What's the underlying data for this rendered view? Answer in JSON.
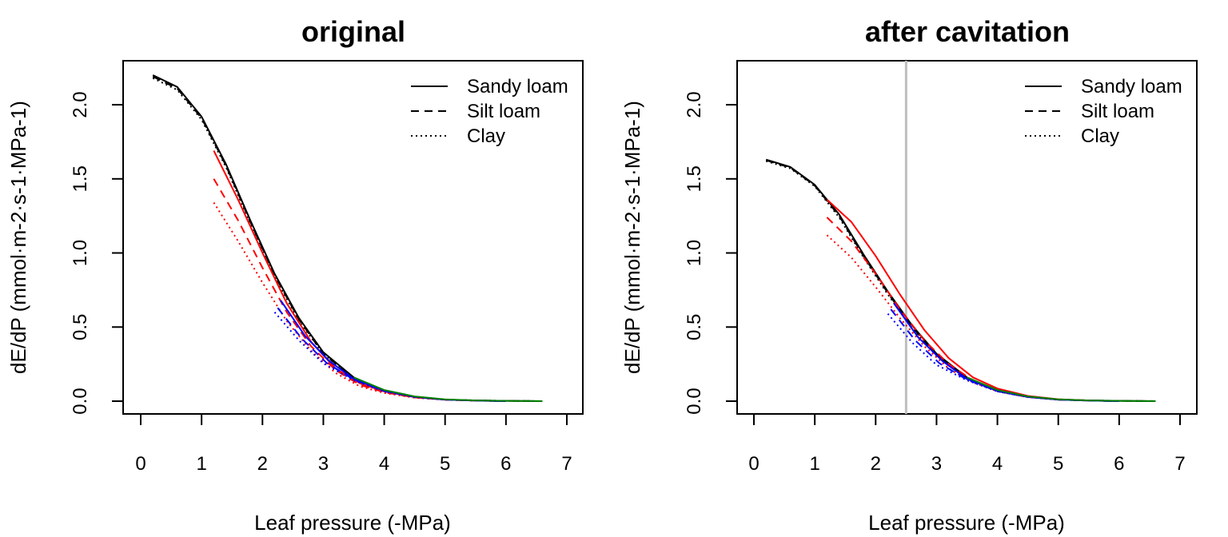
{
  "chart_data": [
    {
      "type": "line",
      "title": "original",
      "xlabel": "Leaf pressure (-MPa)",
      "ylabel": "dE/dP  (mmol·m-2·s-1·MPa-1)",
      "xlim": [
        0,
        7
      ],
      "ylim": [
        0,
        2.2
      ],
      "xticks": [
        "0",
        "1",
        "2",
        "3",
        "4",
        "5",
        "6",
        "7"
      ],
      "yticks": [
        "0.0",
        "0.5",
        "1.0",
        "1.5",
        "2.0"
      ],
      "legend_position": "top-right",
      "legend": [
        {
          "label": "Sandy loam",
          "dash": "solid"
        },
        {
          "label": "Silt loam",
          "dash": "dashed"
        },
        {
          "label": "Clay",
          "dash": "dotted"
        }
      ],
      "series": [
        {
          "color": "#000000",
          "dash": "solid",
          "x": [
            0.2,
            0.6,
            1.0,
            1.4,
            1.8,
            2.2,
            2.6,
            3.0,
            3.5,
            4.0,
            4.5,
            5.0,
            5.5,
            6.0,
            6.6
          ],
          "y": [
            2.2,
            2.12,
            1.92,
            1.6,
            1.22,
            0.86,
            0.56,
            0.33,
            0.16,
            0.07,
            0.03,
            0.01,
            0.005,
            0.002,
            0.0
          ]
        },
        {
          "color": "#000000",
          "dash": "dashed",
          "x": [
            0.2,
            0.6,
            1.0,
            1.4,
            1.8,
            2.2,
            2.6,
            3.0,
            3.5,
            4.0,
            4.5,
            5.0,
            5.5,
            6.0,
            6.6
          ],
          "y": [
            2.19,
            2.11,
            1.91,
            1.59,
            1.21,
            0.85,
            0.55,
            0.32,
            0.155,
            0.068,
            0.028,
            0.01,
            0.005,
            0.002,
            0.0
          ]
        },
        {
          "color": "#000000",
          "dash": "dotted",
          "x": [
            0.2,
            0.6,
            1.0,
            1.4,
            1.8,
            2.2,
            2.6,
            3.0,
            3.5,
            4.0,
            4.5,
            5.0,
            5.5,
            6.0,
            6.6
          ],
          "y": [
            2.18,
            2.1,
            1.9,
            1.58,
            1.2,
            0.84,
            0.54,
            0.32,
            0.15,
            0.066,
            0.027,
            0.01,
            0.005,
            0.002,
            0.0
          ]
        },
        {
          "color": "#ff0000",
          "dash": "solid",
          "x": [
            1.2,
            1.6,
            2.0,
            2.4,
            2.8,
            3.2,
            3.6,
            4.0,
            4.5,
            5.0,
            5.5,
            6.0
          ],
          "y": [
            1.69,
            1.36,
            1.0,
            0.66,
            0.4,
            0.22,
            0.12,
            0.065,
            0.027,
            0.01,
            0.004,
            0.0
          ]
        },
        {
          "color": "#ff0000",
          "dash": "dashed",
          "x": [
            1.2,
            1.6,
            2.0,
            2.4,
            2.8,
            3.2,
            3.6,
            4.0,
            4.5,
            5.0,
            5.5,
            6.0
          ],
          "y": [
            1.5,
            1.22,
            0.9,
            0.6,
            0.37,
            0.21,
            0.11,
            0.06,
            0.025,
            0.01,
            0.004,
            0.0
          ]
        },
        {
          "color": "#ff0000",
          "dash": "dotted",
          "x": [
            1.2,
            1.6,
            2.0,
            2.4,
            2.8,
            3.2,
            3.6,
            4.0,
            4.5,
            5.0,
            5.5,
            6.0
          ],
          "y": [
            1.34,
            1.08,
            0.8,
            0.54,
            0.34,
            0.19,
            0.1,
            0.055,
            0.023,
            0.009,
            0.003,
            0.0
          ]
        },
        {
          "color": "#0000ff",
          "dash": "solid",
          "x": [
            2.3,
            2.7,
            3.1,
            3.5,
            4.0,
            4.5,
            5.0,
            5.5,
            6.0
          ],
          "y": [
            0.68,
            0.44,
            0.27,
            0.15,
            0.07,
            0.03,
            0.01,
            0.004,
            0.0
          ]
        },
        {
          "color": "#0000ff",
          "dash": "dashed",
          "x": [
            2.25,
            2.65,
            3.05,
            3.5,
            4.0,
            4.5,
            5.0,
            5.5,
            6.0
          ],
          "y": [
            0.63,
            0.42,
            0.26,
            0.145,
            0.068,
            0.028,
            0.01,
            0.004,
            0.0
          ]
        },
        {
          "color": "#0000ff",
          "dash": "dotted",
          "x": [
            2.2,
            2.6,
            3.0,
            3.5,
            4.0,
            4.5,
            5.0,
            5.5,
            6.0
          ],
          "y": [
            0.6,
            0.41,
            0.255,
            0.14,
            0.065,
            0.027,
            0.01,
            0.004,
            0.0
          ]
        },
        {
          "color": "#008000",
          "dash": "solid",
          "x": [
            3.5,
            4.0,
            4.5,
            5.0,
            5.5,
            6.0,
            6.6
          ],
          "y": [
            0.16,
            0.075,
            0.032,
            0.012,
            0.005,
            0.002,
            0.0
          ]
        }
      ]
    },
    {
      "type": "line",
      "title": "after cavitation",
      "xlabel": "Leaf pressure (-MPa)",
      "ylabel": "dE/dP  (mmol·m-2·s-1·MPa-1)",
      "xlim": [
        0,
        7
      ],
      "ylim": [
        0,
        2.2
      ],
      "xticks": [
        "0",
        "1",
        "2",
        "3",
        "4",
        "5",
        "6",
        "7"
      ],
      "yticks": [
        "0.0",
        "0.5",
        "1.0",
        "1.5",
        "2.0"
      ],
      "vline": {
        "x": 2.5,
        "color": "#bebebe"
      },
      "legend_position": "top-right",
      "legend": [
        {
          "label": "Sandy loam",
          "dash": "solid"
        },
        {
          "label": "Silt loam",
          "dash": "dashed"
        },
        {
          "label": "Clay",
          "dash": "dotted"
        }
      ],
      "series": [
        {
          "color": "#000000",
          "dash": "solid",
          "x": [
            0.2,
            0.6,
            1.0,
            1.4,
            1.8,
            2.2,
            2.6,
            3.0,
            3.5,
            4.0,
            4.5,
            5.0,
            5.5,
            6.0,
            6.6
          ],
          "y": [
            1.63,
            1.58,
            1.46,
            1.26,
            0.99,
            0.74,
            0.51,
            0.32,
            0.16,
            0.07,
            0.03,
            0.01,
            0.005,
            0.002,
            0.0
          ]
        },
        {
          "color": "#000000",
          "dash": "dashed",
          "x": [
            0.2,
            0.6,
            1.0,
            1.4,
            1.8,
            2.2,
            2.6,
            3.0,
            3.5,
            4.0,
            4.5,
            5.0,
            5.5,
            6.0,
            6.6
          ],
          "y": [
            1.625,
            1.575,
            1.455,
            1.25,
            0.98,
            0.73,
            0.5,
            0.31,
            0.155,
            0.068,
            0.028,
            0.01,
            0.005,
            0.002,
            0.0
          ]
        },
        {
          "color": "#000000",
          "dash": "dotted",
          "x": [
            0.2,
            0.6,
            1.0,
            1.4,
            1.8,
            2.2,
            2.6,
            3.0,
            3.5,
            4.0,
            4.5,
            5.0,
            5.5,
            6.0,
            6.6
          ],
          "y": [
            1.62,
            1.57,
            1.45,
            1.24,
            0.97,
            0.72,
            0.49,
            0.305,
            0.15,
            0.066,
            0.027,
            0.01,
            0.005,
            0.002,
            0.0
          ]
        },
        {
          "color": "#ff0000",
          "dash": "solid",
          "x": [
            1.2,
            1.6,
            2.0,
            2.4,
            2.8,
            3.2,
            3.6,
            4.0,
            4.5,
            5.0,
            5.5,
            6.0
          ],
          "y": [
            1.36,
            1.21,
            0.98,
            0.72,
            0.48,
            0.29,
            0.16,
            0.085,
            0.035,
            0.013,
            0.005,
            0.0
          ]
        },
        {
          "color": "#ff0000",
          "dash": "dashed",
          "x": [
            1.2,
            1.6,
            2.0,
            2.4,
            2.8,
            3.2,
            3.6,
            4.0,
            4.5,
            5.0,
            5.5,
            6.0
          ],
          "y": [
            1.24,
            1.08,
            0.86,
            0.62,
            0.41,
            0.25,
            0.14,
            0.075,
            0.03,
            0.011,
            0.004,
            0.0
          ]
        },
        {
          "color": "#ff0000",
          "dash": "dotted",
          "x": [
            1.2,
            1.6,
            2.0,
            2.4,
            2.8,
            3.2,
            3.6,
            4.0,
            4.5,
            5.0,
            5.5,
            6.0
          ],
          "y": [
            1.12,
            0.97,
            0.77,
            0.56,
            0.37,
            0.22,
            0.125,
            0.068,
            0.027,
            0.01,
            0.004,
            0.0
          ]
        },
        {
          "color": "#0000ff",
          "dash": "solid",
          "x": [
            2.3,
            2.7,
            3.1,
            3.5,
            4.0,
            4.5,
            5.0,
            5.5,
            6.0
          ],
          "y": [
            0.66,
            0.43,
            0.27,
            0.15,
            0.07,
            0.03,
            0.01,
            0.004,
            0.0
          ]
        },
        {
          "color": "#0000ff",
          "dash": "dashed",
          "x": [
            2.25,
            2.65,
            3.05,
            3.5,
            4.0,
            4.5,
            5.0,
            5.5,
            6.0
          ],
          "y": [
            0.62,
            0.41,
            0.255,
            0.145,
            0.068,
            0.028,
            0.01,
            0.004,
            0.0
          ]
        },
        {
          "color": "#0000ff",
          "dash": "dotted",
          "x": [
            2.2,
            2.6,
            3.0,
            3.5,
            4.0,
            4.5,
            5.0,
            5.5,
            6.0
          ],
          "y": [
            0.59,
            0.395,
            0.245,
            0.14,
            0.065,
            0.027,
            0.01,
            0.004,
            0.0
          ]
        },
        {
          "color": "#008000",
          "dash": "solid",
          "x": [
            3.5,
            4.0,
            4.5,
            5.0,
            5.5,
            6.0,
            6.6
          ],
          "y": [
            0.16,
            0.075,
            0.032,
            0.012,
            0.005,
            0.002,
            0.0
          ]
        }
      ]
    }
  ]
}
